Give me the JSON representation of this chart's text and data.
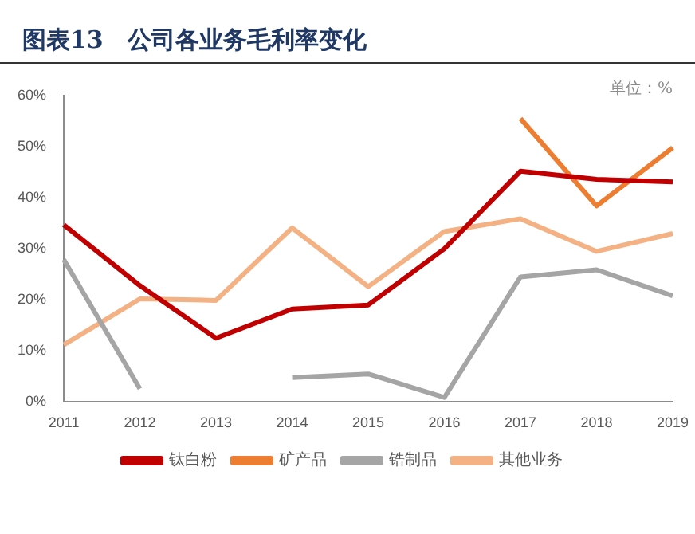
{
  "chart_data": {
    "type": "line",
    "title": "图表13　公司各业务毛利率变化",
    "annotations": [
      "单位：%"
    ],
    "categories": [
      "2011",
      "2012",
      "2013",
      "2014",
      "2015",
      "2016",
      "2017",
      "2018",
      "2019"
    ],
    "series": [
      {
        "name": "钛白粉",
        "color": "#c00000",
        "values": [
          34.7,
          22.8,
          12.5,
          18.2,
          19.0,
          30.0,
          45.2,
          43.6,
          43.1
        ]
      },
      {
        "name": "矿产品",
        "color": "#ed7d31",
        "values": [
          null,
          null,
          null,
          null,
          null,
          null,
          55.5,
          38.4,
          49.8
        ]
      },
      {
        "name": "锆制品",
        "color": "#a5a5a5",
        "values": [
          27.9,
          2.6,
          null,
          4.8,
          5.5,
          0.9,
          24.5,
          25.9,
          20.8
        ]
      },
      {
        "name": "其他业务",
        "color": "#f4b183",
        "values": [
          11.2,
          20.2,
          19.9,
          34.1,
          22.6,
          33.4,
          35.9,
          29.5,
          33.0
        ]
      }
    ],
    "ylim": [
      0,
      60
    ],
    "yticks": [
      {
        "value": 0,
        "label": "0%"
      },
      {
        "value": 10,
        "label": "10%"
      },
      {
        "value": 20,
        "label": "20%"
      },
      {
        "value": 30,
        "label": "30%"
      },
      {
        "value": 40,
        "label": "40%"
      },
      {
        "value": 50,
        "label": "50%"
      },
      {
        "value": 60,
        "label": "60%"
      }
    ],
    "grid": false,
    "legend": "bottom",
    "marker": "none",
    "line_style": "solid"
  }
}
